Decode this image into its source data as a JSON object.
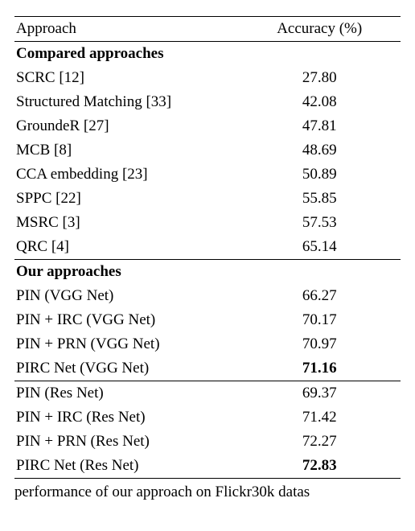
{
  "table": {
    "header": {
      "approach": "Approach",
      "accuracy": "Accuracy (%)"
    },
    "sections": [
      {
        "title": "Compared approaches",
        "rows": [
          {
            "label": "SCRC [12]",
            "value": "27.80",
            "bold": false
          },
          {
            "label": "Structured Matching [33]",
            "value": "42.08",
            "bold": false
          },
          {
            "label": "GroundeR [27]",
            "value": "47.81",
            "bold": false
          },
          {
            "label": "MCB [8]",
            "value": "48.69",
            "bold": false
          },
          {
            "label": "CCA embedding [23]",
            "value": "50.89",
            "bold": false
          },
          {
            "label": "SPPC [22]",
            "value": "55.85",
            "bold": false
          },
          {
            "label": "MSRC  [3]",
            "value": "57.53",
            "bold": false
          },
          {
            "label": "QRC  [4]",
            "value": "65.14",
            "bold": false
          }
        ]
      },
      {
        "title": "Our approaches",
        "rows": [
          {
            "label": "PIN (VGG Net)",
            "value": "66.27",
            "bold": false
          },
          {
            "label": "PIN + IRC (VGG Net)",
            "value": "70.17",
            "bold": false
          },
          {
            "label": "PIN + PRN (VGG Net)",
            "value": "70.97",
            "bold": false
          },
          {
            "label": "PIRC Net (VGG Net)",
            "value": "71.16",
            "bold": true
          }
        ]
      },
      {
        "title": null,
        "rows": [
          {
            "label": "PIN (Res Net)",
            "value": "69.37",
            "bold": false
          },
          {
            "label": "PIN + IRC (Res Net)",
            "value": "71.42",
            "bold": false
          },
          {
            "label": "PIN + PRN (Res Net)",
            "value": "72.27",
            "bold": false
          },
          {
            "label": "PIRC Net (Res Net)",
            "value": "72.83",
            "bold": true
          }
        ]
      }
    ]
  },
  "caption_fragment": "performance of our approach on Flickr30k datas"
}
